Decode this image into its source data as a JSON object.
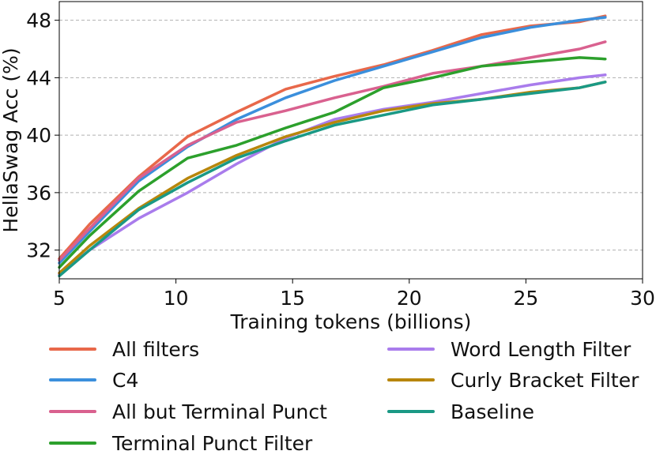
{
  "chart_data": {
    "type": "line",
    "title": "",
    "xlabel": "Training tokens (billions)",
    "ylabel": "HellaSwag Acc (%)",
    "xlim": [
      5,
      30
    ],
    "ylim": [
      30,
      49.3
    ],
    "x_ticks": [
      "5",
      "10",
      "15",
      "20",
      "25",
      "30"
    ],
    "y_ticks": [
      "32",
      "36",
      "40",
      "44",
      "48"
    ],
    "grid": "horizontal dashed",
    "legend_position": "below plot, two columns",
    "series": [
      {
        "name": "All filters",
        "color": "#e8684a",
        "points": [
          [
            5.0,
            31.4
          ],
          [
            6.3,
            33.8
          ],
          [
            8.4,
            37.1
          ],
          [
            10.5,
            39.9
          ],
          [
            12.6,
            41.6
          ],
          [
            14.7,
            43.2
          ],
          [
            16.8,
            44.1
          ],
          [
            18.9,
            44.9
          ],
          [
            21.0,
            45.9
          ],
          [
            23.1,
            47.0
          ],
          [
            25.2,
            47.6
          ],
          [
            27.3,
            47.9
          ],
          [
            28.4,
            48.3
          ]
        ]
      },
      {
        "name": "C4",
        "color": "#3b8fdc",
        "points": [
          [
            5.0,
            31.1
          ],
          [
            6.3,
            33.3
          ],
          [
            8.4,
            36.8
          ],
          [
            10.5,
            39.2
          ],
          [
            12.6,
            41.1
          ],
          [
            14.7,
            42.6
          ],
          [
            16.8,
            43.8
          ],
          [
            18.9,
            44.8
          ],
          [
            21.0,
            45.8
          ],
          [
            23.1,
            46.8
          ],
          [
            25.2,
            47.5
          ],
          [
            27.3,
            48.0
          ],
          [
            28.4,
            48.2
          ]
        ]
      },
      {
        "name": "All but Terminal Punct",
        "color": "#d9618f",
        "points": [
          [
            5.0,
            31.3
          ],
          [
            6.3,
            33.5
          ],
          [
            8.4,
            37.0
          ],
          [
            10.5,
            39.3
          ],
          [
            12.6,
            40.9
          ],
          [
            14.7,
            41.7
          ],
          [
            16.8,
            42.6
          ],
          [
            18.9,
            43.4
          ],
          [
            21.0,
            44.3
          ],
          [
            23.1,
            44.8
          ],
          [
            25.2,
            45.4
          ],
          [
            27.3,
            46.0
          ],
          [
            28.4,
            46.5
          ]
        ]
      },
      {
        "name": "Terminal Punct Filter",
        "color": "#2ca02c",
        "points": [
          [
            5.0,
            30.8
          ],
          [
            6.3,
            33.0
          ],
          [
            8.4,
            36.1
          ],
          [
            10.5,
            38.4
          ],
          [
            12.6,
            39.3
          ],
          [
            14.7,
            40.5
          ],
          [
            16.8,
            41.6
          ],
          [
            18.9,
            43.3
          ],
          [
            21.0,
            44.0
          ],
          [
            23.1,
            44.8
          ],
          [
            25.2,
            45.1
          ],
          [
            27.3,
            45.4
          ],
          [
            28.4,
            45.3
          ]
        ]
      },
      {
        "name": "Word Length Filter",
        "color": "#a97cec",
        "points": [
          [
            5.0,
            30.3
          ],
          [
            6.3,
            32.0
          ],
          [
            8.4,
            34.2
          ],
          [
            10.5,
            36.0
          ],
          [
            12.6,
            38.0
          ],
          [
            14.7,
            39.8
          ],
          [
            16.8,
            41.1
          ],
          [
            18.9,
            41.8
          ],
          [
            21.0,
            42.3
          ],
          [
            23.1,
            42.9
          ],
          [
            25.2,
            43.5
          ],
          [
            27.3,
            44.0
          ],
          [
            28.4,
            44.2
          ]
        ]
      },
      {
        "name": "Curly Bracket Filter",
        "color": "#b8860b",
        "points": [
          [
            5.0,
            30.4
          ],
          [
            6.3,
            32.3
          ],
          [
            8.4,
            34.9
          ],
          [
            10.5,
            37.0
          ],
          [
            12.6,
            38.6
          ],
          [
            14.7,
            39.9
          ],
          [
            16.8,
            40.9
          ],
          [
            18.9,
            41.7
          ],
          [
            21.0,
            42.2
          ],
          [
            23.1,
            42.5
          ],
          [
            25.2,
            43.0
          ],
          [
            27.3,
            43.3
          ],
          [
            28.4,
            43.7
          ]
        ]
      },
      {
        "name": "Baseline",
        "color": "#1a9985",
        "points": [
          [
            5.0,
            30.2
          ],
          [
            6.3,
            32.0
          ],
          [
            8.4,
            34.8
          ],
          [
            10.5,
            36.7
          ],
          [
            12.6,
            38.4
          ],
          [
            14.7,
            39.6
          ],
          [
            16.8,
            40.7
          ],
          [
            18.9,
            41.4
          ],
          [
            21.0,
            42.1
          ],
          [
            23.1,
            42.5
          ],
          [
            25.2,
            42.9
          ],
          [
            27.3,
            43.3
          ],
          [
            28.4,
            43.7
          ]
        ]
      }
    ]
  }
}
